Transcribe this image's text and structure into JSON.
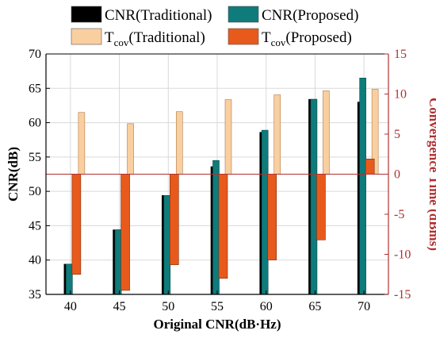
{
  "chart_data": {
    "type": "bar",
    "title": "",
    "xlabel": "Original CNR(dB·Hz)",
    "ylabel_left": "CNR(dB)",
    "ylabel_right": "Convergence Time (dBms)",
    "categories": [
      "40",
      "45",
      "50",
      "55",
      "60",
      "65",
      "70"
    ],
    "ylim_left": [
      35,
      70
    ],
    "yticks_left": [
      "35",
      "40",
      "45",
      "50",
      "55",
      "60",
      "65",
      "70"
    ],
    "ylim_right": [
      -15,
      15
    ],
    "yticks_right": [
      "-15",
      "-10",
      "-5",
      "0",
      "5",
      "10",
      "15"
    ],
    "grid": true,
    "legend_position": "top",
    "series": [
      {
        "name": "CNR(Traditional)",
        "legend_main": "CNR(Traditional)",
        "legend_sub": "",
        "axis": "left",
        "color": "#000000",
        "values": [
          39.4,
          44.4,
          49.4,
          53.6,
          58.6,
          63.4,
          63.0
        ]
      },
      {
        "name": "CNR(Proposed)",
        "legend_main": "CNR(Proposed)",
        "legend_sub": "",
        "axis": "left",
        "color": "#0f7b7b",
        "values": [
          39.4,
          44.4,
          49.4,
          54.5,
          58.9,
          63.4,
          66.5
        ]
      },
      {
        "name": "Tcov(Traditional)",
        "legend_main": "T",
        "legend_sub": "cov",
        "legend_rest": "(Traditional)",
        "axis": "right",
        "color": "#f9cfa0",
        "values": [
          7.7,
          6.3,
          7.8,
          9.3,
          9.9,
          10.4,
          10.6
        ]
      },
      {
        "name": "Tcov(Proposed)",
        "legend_main": "T",
        "legend_sub": "cov",
        "legend_rest": "(Proposed)",
        "axis": "right",
        "color": "#e85a1c",
        "values": [
          -12.5,
          -14.5,
          -11.3,
          -13.0,
          -10.7,
          -8.2,
          1.9
        ]
      }
    ],
    "reference_line": {
      "axis": "right",
      "value": 0,
      "color": "#b03030"
    },
    "right_axis_color": "#b03030"
  }
}
